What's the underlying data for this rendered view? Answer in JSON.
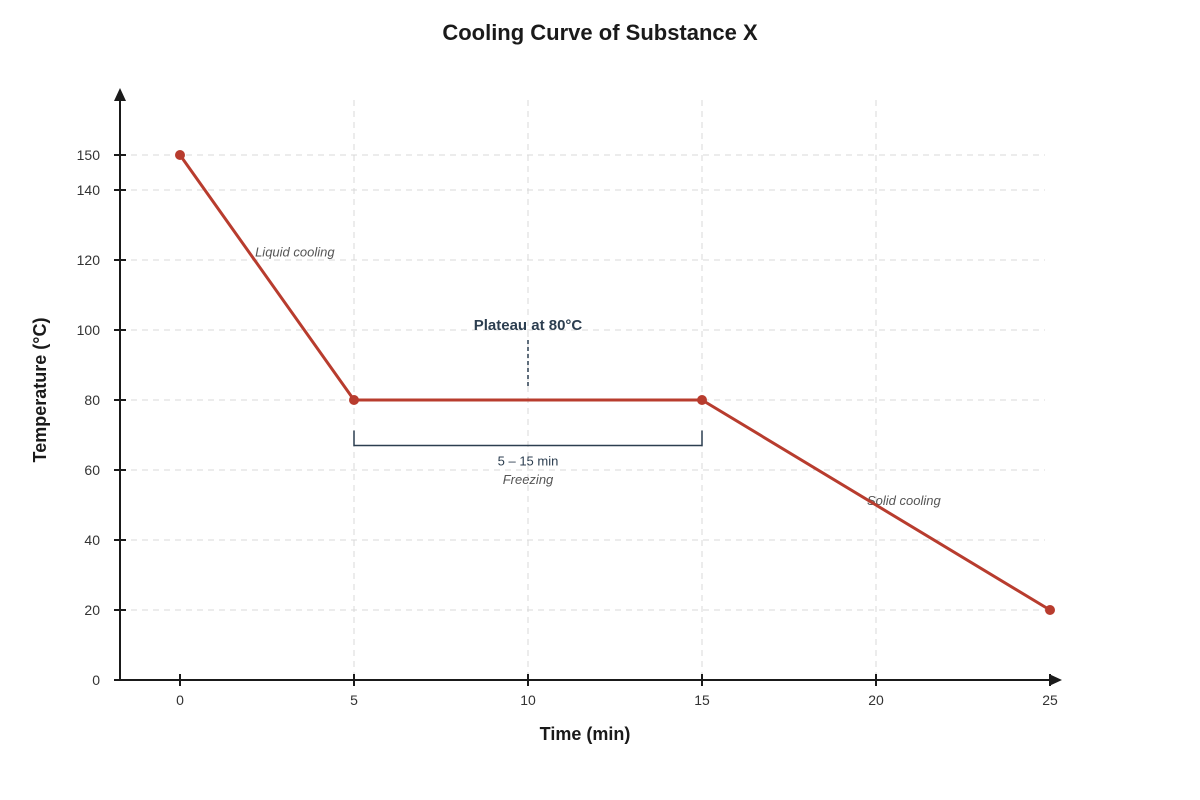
{
  "chart_data": {
    "type": "line",
    "title": "Cooling Curve of Substance X",
    "xlabel": "Time (min)",
    "ylabel": "Temperature (°C)",
    "xlim": [
      0,
      25
    ],
    "ylim": [
      0,
      150
    ],
    "x_ticks": [
      "0",
      "5",
      "10",
      "15",
      "20",
      "25"
    ],
    "y_ticks": [
      "0",
      "20",
      "40",
      "60",
      "80",
      "100",
      "120",
      "140",
      "150"
    ],
    "grid": true,
    "series": [
      {
        "color": "#b83c2e",
        "points": [
          {
            "x": 0,
            "y": 150
          },
          {
            "x": 5,
            "y": 80
          },
          {
            "x": 15,
            "y": 80
          },
          {
            "x": 25,
            "y": 20
          }
        ]
      }
    ],
    "annotations": {
      "liquid": {
        "text": "Liquid cooling",
        "x": 3.3,
        "y": 121
      },
      "plateau": {
        "text": "Plateau at 80°C",
        "x": 10,
        "y": 100
      },
      "span": {
        "text": "5 – 15 min",
        "from": 5,
        "to": 15,
        "y": 67
      },
      "freezing": {
        "text": "Freezing",
        "x": 10,
        "y": 56
      },
      "solid": {
        "text": "Solid cooling",
        "x": 20.8,
        "y": 50
      }
    }
  }
}
